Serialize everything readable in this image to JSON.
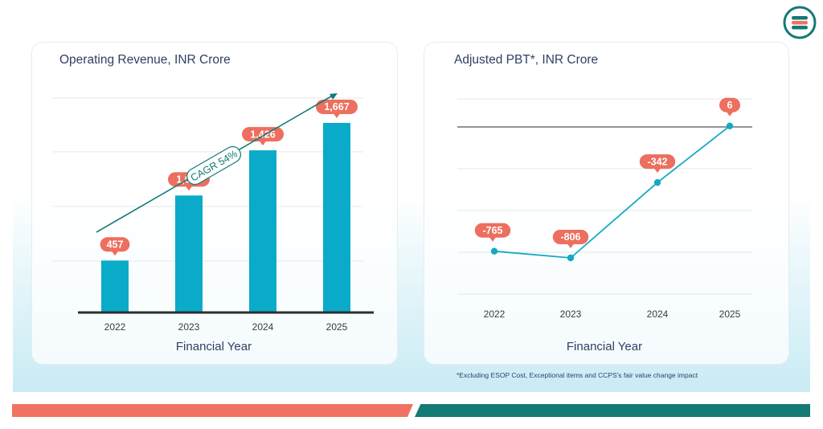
{
  "chart_data": [
    {
      "type": "bar",
      "title": "Operating Revenue, INR Crore",
      "xlabel": "Financial Year",
      "categories": [
        "2022",
        "2023",
        "2024",
        "2025"
      ],
      "values": [
        457,
        1029,
        1426,
        1667
      ],
      "value_labels": [
        "457",
        "1,029",
        "1,426",
        "1,667"
      ],
      "ylim": [
        0,
        1900
      ],
      "annotation": "CAGR 54%",
      "grid": true,
      "bar_color": "#0aabc9",
      "label_color": "#ec6f5f"
    },
    {
      "type": "line",
      "title": "Adjusted PBT*, INR Crore",
      "xlabel": "Financial Year",
      "categories": [
        "2022",
        "2023",
        "2024",
        "2025"
      ],
      "values": [
        -765,
        -806,
        -342,
        6
      ],
      "value_labels": [
        "-765",
        "-806",
        "-342",
        "6"
      ],
      "ylim": [
        -1150,
        80
      ],
      "grid": true,
      "line_color": "#14a9c2",
      "label_color": "#ec6f5f"
    }
  ],
  "footnote": "*Excluding ESOP Cost, Exceptional items and CCPS's fair value change impact",
  "colors": {
    "red_stripe": "#f07262",
    "teal_stripe": "#137a75",
    "text": "#2f3f63"
  },
  "logo_icon": "brand-logo-icon"
}
